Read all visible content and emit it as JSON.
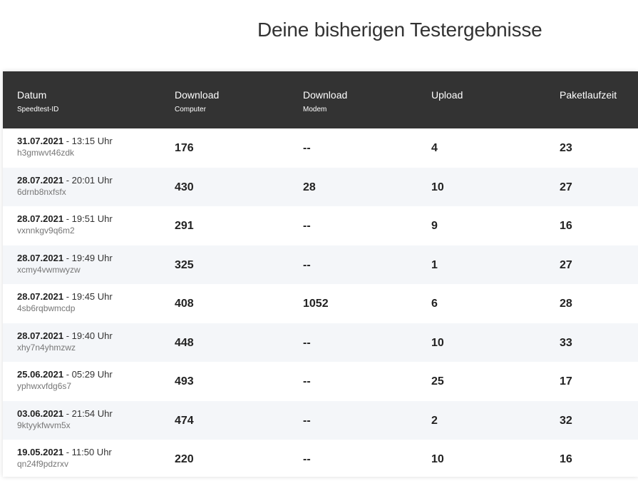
{
  "page": {
    "title": "Deine bisherigen Testergebnisse"
  },
  "table": {
    "headers": [
      {
        "main": "Datum",
        "sub": "Speedtest-ID"
      },
      {
        "main": "Download",
        "sub": "Computer"
      },
      {
        "main": "Download",
        "sub": "Modem"
      },
      {
        "main": "Upload",
        "sub": ""
      },
      {
        "main": "Paketlaufzeit",
        "sub": ""
      }
    ],
    "rows": [
      {
        "date": "31.07.2021",
        "time": " - 13:15 Uhr",
        "id": "h3gmwvt46zdk",
        "download_computer": "176",
        "download_modem": "--",
        "upload": "4",
        "ping": "23"
      },
      {
        "date": "28.07.2021",
        "time": " - 20:01 Uhr",
        "id": "6drnb8nxfsfx",
        "download_computer": "430",
        "download_modem": "28",
        "upload": "10",
        "ping": "27"
      },
      {
        "date": "28.07.2021",
        "time": " - 19:51 Uhr",
        "id": "vxnnkgv9q6m2",
        "download_computer": "291",
        "download_modem": "--",
        "upload": "9",
        "ping": "16"
      },
      {
        "date": "28.07.2021",
        "time": " - 19:49 Uhr",
        "id": "xcmy4vwmwyzw",
        "download_computer": "325",
        "download_modem": "--",
        "upload": "1",
        "ping": "27"
      },
      {
        "date": "28.07.2021",
        "time": " - 19:45 Uhr",
        "id": "4sb6rqbwmcdp",
        "download_computer": "408",
        "download_modem": "1052",
        "upload": "6",
        "ping": "28"
      },
      {
        "date": "28.07.2021",
        "time": " - 19:40 Uhr",
        "id": "xhy7n4yhmzwz",
        "download_computer": "448",
        "download_modem": "--",
        "upload": "10",
        "ping": "33"
      },
      {
        "date": "25.06.2021",
        "time": " - 05:29 Uhr",
        "id": "yphwxvfdg6s7",
        "download_computer": "493",
        "download_modem": "--",
        "upload": "25",
        "ping": "17"
      },
      {
        "date": "03.06.2021",
        "time": " - 21:54 Uhr",
        "id": "9ktyykfwvm5x",
        "download_computer": "474",
        "download_modem": "--",
        "upload": "2",
        "ping": "32"
      },
      {
        "date": "19.05.2021",
        "time": " - 11:50 Uhr",
        "id": "qn24f9pdzrxv",
        "download_computer": "220",
        "download_modem": "--",
        "upload": "10",
        "ping": "16"
      }
    ]
  },
  "colors": {
    "header_bg": "#333333",
    "row_alt_bg": "#f4f6f9"
  }
}
